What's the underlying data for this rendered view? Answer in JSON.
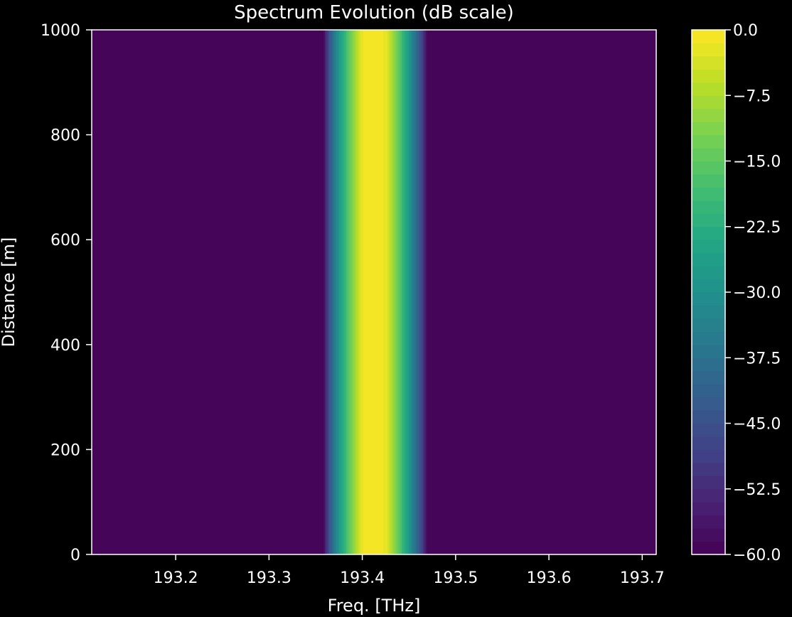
{
  "chart_data": {
    "type": "heatmap",
    "title": "Spectrum Evolution (dB scale)",
    "xlabel": "Freq. [THz]",
    "ylabel": "Distance [m]",
    "xlim": [
      193.11,
      193.715
    ],
    "ylim": [
      0,
      1000
    ],
    "x_ticks": [
      193.2,
      193.3,
      193.4,
      193.5,
      193.6,
      193.7
    ],
    "x_tick_labels": [
      "193.2",
      "193.3",
      "193.4",
      "193.5",
      "193.6",
      "193.7"
    ],
    "y_ticks": [
      0,
      200,
      400,
      600,
      800,
      1000
    ],
    "y_tick_labels": [
      "0",
      "200",
      "400",
      "600",
      "800",
      "1000"
    ],
    "colorbar": {
      "colormap": "viridis",
      "range": [
        -60,
        0
      ],
      "levels": 40,
      "ticks": [
        0,
        -7.5,
        -15,
        -22.5,
        -30,
        -37.5,
        -45,
        -52.5,
        -60
      ],
      "tick_labels": [
        "0.0",
        "−7.5",
        "−15.0",
        "−22.5",
        "−30.0",
        "−37.5",
        "−45.0",
        "−52.5",
        "−60.0"
      ]
    },
    "spectrum_profile_db": {
      "freq_thz": [
        193.358,
        193.362,
        193.366,
        193.37,
        193.375,
        193.38,
        193.385,
        193.39,
        193.395,
        193.4,
        193.405,
        193.415,
        193.425,
        193.43,
        193.435,
        193.44,
        193.445,
        193.45,
        193.455,
        193.46,
        193.465,
        193.47
      ],
      "level_db": [
        -60,
        -50,
        -42,
        -35,
        -28,
        -22,
        -16,
        -11,
        -6,
        -2,
        0,
        0,
        -2,
        -6,
        -11,
        -16,
        -22,
        -28,
        -35,
        -42,
        -50,
        -60
      ],
      "floor_db": -60
    }
  }
}
